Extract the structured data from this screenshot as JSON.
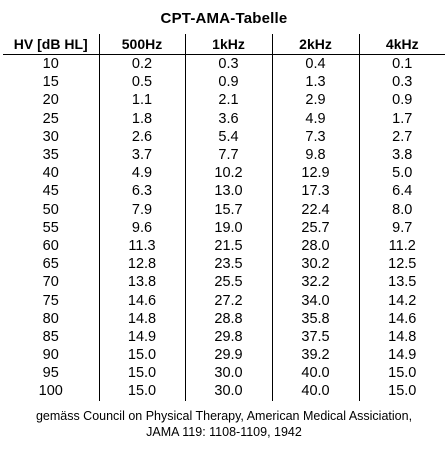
{
  "title": "CPT-AMA-Tabelle",
  "columns": [
    "HV [dB HL]",
    "500Hz",
    "1kHz",
    "2kHz",
    "4kHz"
  ],
  "rows": [
    [
      "10",
      "0.2",
      "0.3",
      "0.4",
      "0.1"
    ],
    [
      "15",
      "0.5",
      "0.9",
      "1.3",
      "0.3"
    ],
    [
      "20",
      "1.1",
      "2.1",
      "2.9",
      "0.9"
    ],
    [
      "25",
      "1.8",
      "3.6",
      "4.9",
      "1.7"
    ],
    [
      "30",
      "2.6",
      "5.4",
      "7.3",
      "2.7"
    ],
    [
      "35",
      "3.7",
      "7.7",
      "9.8",
      "3.8"
    ],
    [
      "40",
      "4.9",
      "10.2",
      "12.9",
      "5.0"
    ],
    [
      "45",
      "6.3",
      "13.0",
      "17.3",
      "6.4"
    ],
    [
      "50",
      "7.9",
      "15.7",
      "22.4",
      "8.0"
    ],
    [
      "55",
      "9.6",
      "19.0",
      "25.7",
      "9.7"
    ],
    [
      "60",
      "11.3",
      "21.5",
      "28.0",
      "11.2"
    ],
    [
      "65",
      "12.8",
      "23.5",
      "30.2",
      "12.5"
    ],
    [
      "70",
      "13.8",
      "25.5",
      "32.2",
      "13.5"
    ],
    [
      "75",
      "14.6",
      "27.2",
      "34.0",
      "14.2"
    ],
    [
      "80",
      "14.8",
      "28.8",
      "35.8",
      "14.6"
    ],
    [
      "85",
      "14.9",
      "29.8",
      "37.5",
      "14.8"
    ],
    [
      "90",
      "15.0",
      "29.9",
      "39.2",
      "14.9"
    ],
    [
      "95",
      "15.0",
      "30.0",
      "40.0",
      "15.0"
    ],
    [
      "100",
      "15.0",
      "30.0",
      "40.0",
      "15.0"
    ]
  ],
  "footnote": {
    "line1": "gemäss Council on Physical Therapy, American Medical Assiciation,",
    "line2": "JAMA 119: 1108-1109, 1942"
  }
}
